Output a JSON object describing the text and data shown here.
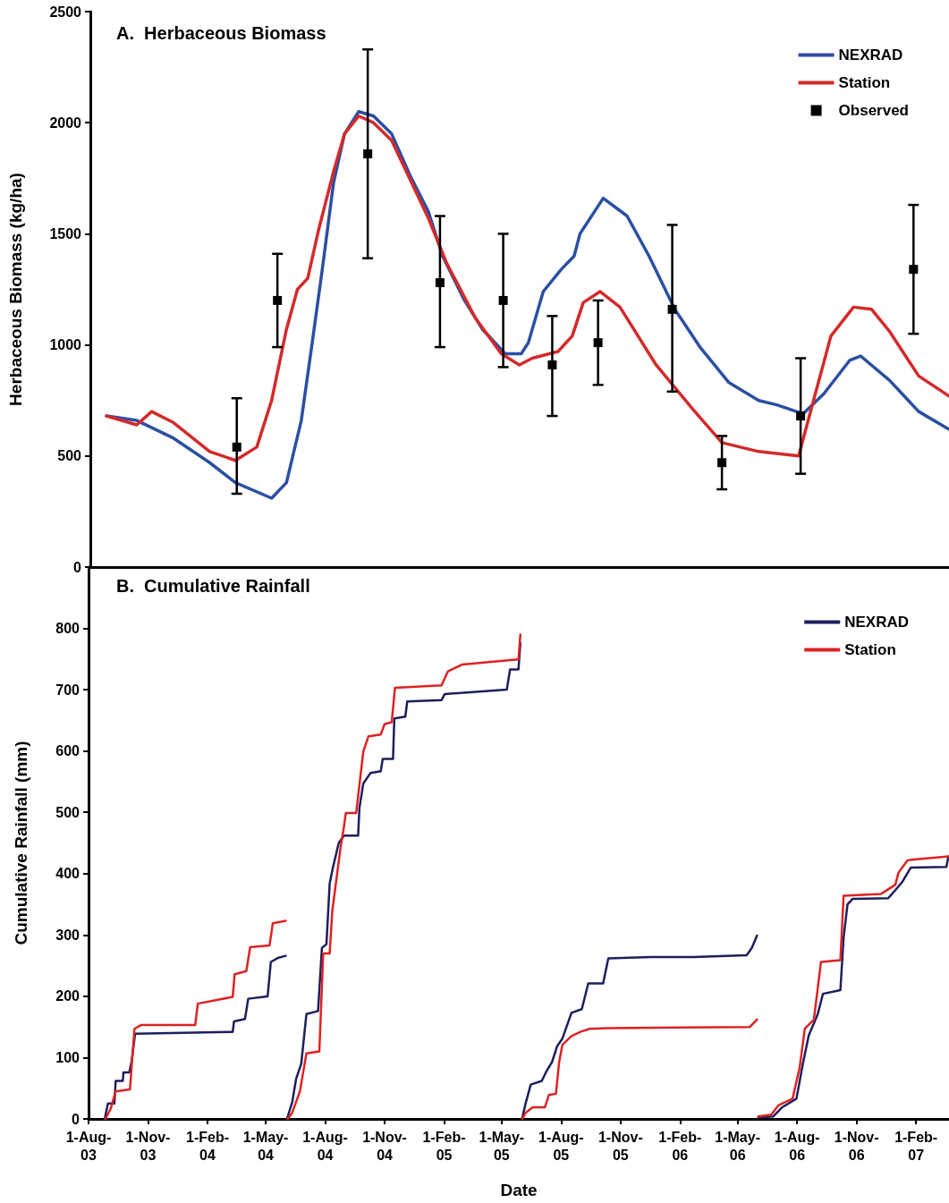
{
  "chart_data": [
    {
      "type": "line",
      "title": "A.  Herbaceous Biomass",
      "ylabel": "Herbaceous Biomass (kg/ha)",
      "xlim": [
        "2003-08-01",
        "2007-03-24"
      ],
      "ylim": [
        0,
        2500
      ],
      "yticks": [
        0,
        500,
        1000,
        1500,
        2000,
        2500
      ],
      "tick_labels": "y",
      "legend": "top right",
      "series": [
        {
          "name": "NEXRAD",
          "color": "#2b4fa3",
          "x": [
            "2003-08-26",
            "2003-10-12",
            "2003-12-08",
            "2004-02-02",
            "2004-03-13",
            "2004-05-08",
            "2004-05-31",
            "2004-06-23",
            "2004-07-09",
            "2004-07-26",
            "2004-08-12",
            "2004-08-29",
            "2004-09-20",
            "2004-10-13",
            "2004-11-10",
            "2004-12-09",
            "2005-01-06",
            "2005-01-28",
            "2005-03-03",
            "2005-03-31",
            "2005-05-05",
            "2005-05-30",
            "2005-06-10",
            "2005-07-03",
            "2005-07-31",
            "2005-08-20",
            "2005-08-29",
            "2005-10-04",
            "2005-11-10",
            "2005-12-14",
            "2006-01-23",
            "2006-03-03",
            "2006-04-17",
            "2006-06-02",
            "2006-06-30",
            "2006-08-10",
            "2006-09-11",
            "2006-10-21",
            "2006-11-07",
            "2006-12-22",
            "2007-02-05",
            "2007-03-24"
          ],
          "values": [
            680,
            660,
            580,
            470,
            380,
            310,
            380,
            660,
            990,
            1350,
            1730,
            1950,
            2050,
            2030,
            1950,
            1760,
            1600,
            1400,
            1200,
            1070,
            960,
            960,
            1010,
            1240,
            1340,
            1400,
            1500,
            1660,
            1580,
            1400,
            1160,
            990,
            830,
            750,
            730,
            690,
            780,
            930,
            950,
            840,
            700,
            620
          ]
        },
        {
          "name": "Station",
          "color": "#d42a2a",
          "x": [
            "2003-08-26",
            "2003-10-12",
            "2003-11-04",
            "2003-12-08",
            "2004-02-02",
            "2004-03-13",
            "2004-04-15",
            "2004-05-08",
            "2004-05-31",
            "2004-06-17",
            "2004-07-03",
            "2004-07-20",
            "2004-08-12",
            "2004-08-29",
            "2004-09-20",
            "2004-10-13",
            "2004-11-10",
            "2005-01-06",
            "2005-02-03",
            "2005-03-20",
            "2005-04-29",
            "2005-05-27",
            "2005-06-16",
            "2005-07-26",
            "2005-08-17",
            "2005-09-03",
            "2005-09-29",
            "2005-10-30",
            "2005-12-25",
            "2006-02-20",
            "2006-04-06",
            "2006-06-02",
            "2006-08-03",
            "2006-08-26",
            "2006-09-22",
            "2006-10-27",
            "2006-11-24",
            "2006-12-22",
            "2007-02-05",
            "2007-03-24"
          ],
          "values": [
            680,
            640,
            700,
            650,
            520,
            480,
            540,
            750,
            1070,
            1250,
            1300,
            1520,
            1780,
            1950,
            2030,
            2000,
            1920,
            1570,
            1370,
            1120,
            960,
            910,
            940,
            970,
            1040,
            1190,
            1240,
            1170,
            910,
            710,
            560,
            520,
            500,
            750,
            1040,
            1170,
            1160,
            1060,
            860,
            770
          ]
        },
        {
          "name": "Observed",
          "type": "scatter",
          "marker": "square",
          "color": "#000000",
          "x": [
            "2004-03-15",
            "2004-05-17",
            "2004-10-04",
            "2005-01-24",
            "2005-05-02",
            "2005-07-17",
            "2005-09-26",
            "2006-01-19",
            "2006-04-06",
            "2006-08-06",
            "2007-01-28"
          ],
          "values": [
            540,
            1200,
            1860,
            1280,
            1200,
            910,
            1010,
            1160,
            470,
            680,
            1340
          ],
          "errors": [
            [
              330,
              760
            ],
            [
              990,
              1410
            ],
            [
              1390,
              2330
            ],
            [
              990,
              1580
            ],
            [
              900,
              1500
            ],
            [
              680,
              1130
            ],
            [
              820,
              1200
            ],
            [
              790,
              1540
            ],
            [
              350,
              590
            ],
            [
              420,
              940
            ],
            [
              1050,
              1630
            ]
          ]
        }
      ]
    },
    {
      "type": "line",
      "title": "B.  Cumulative Rainfall",
      "xlabel": "Date",
      "ylabel": "Cumulative Rainfall (mm)",
      "xlim": [
        "2003-08-01",
        "2007-03-24"
      ],
      "xticks": [
        {
          "value": "2003-08-01",
          "label": "1-Aug-03"
        },
        {
          "value": "2003-11-01",
          "label": "1-Nov-03"
        },
        {
          "value": "2004-02-01",
          "label": "1-Feb-04"
        },
        {
          "value": "2004-05-01",
          "label": "1-May-04"
        },
        {
          "value": "2004-08-01",
          "label": "1-Aug-04"
        },
        {
          "value": "2004-11-01",
          "label": "1-Nov-04"
        },
        {
          "value": "2005-02-01",
          "label": "1-Feb-05"
        },
        {
          "value": "2005-05-01",
          "label": "1-May-05"
        },
        {
          "value": "2005-08-01",
          "label": "1-Aug-05"
        },
        {
          "value": "2005-11-01",
          "label": "1-Nov-05"
        },
        {
          "value": "2006-02-01",
          "label": "1-Feb-06"
        },
        {
          "value": "2006-05-01",
          "label": "1-May-06"
        },
        {
          "value": "2006-08-01",
          "label": "1-Aug-06"
        },
        {
          "value": "2006-11-01",
          "label": "1-Nov-06"
        },
        {
          "value": "2007-02-01",
          "label": "1-Feb-07"
        }
      ],
      "ylim": [
        0,
        900
      ],
      "yticks": [
        0,
        100,
        200,
        300,
        400,
        500,
        600,
        700,
        800
      ],
      "legend": "top right",
      "series": [
        {
          "name": "NEXRAD",
          "color": "#1e1e5e",
          "x": [
            "2003-08-26",
            "2003-08-31",
            "2003-09-10",
            "2003-09-12",
            "2003-09-23",
            "2003-09-24",
            "2003-10-03",
            "2003-10-07",
            "2003-10-12",
            "2004-03-11",
            "2004-03-13",
            "2004-03-30",
            "2004-04-04",
            "2004-05-04",
            "2004-05-09",
            "2004-05-21",
            "2004-06-01",
            "2004-06-02",
            "2004-06-03",
            "2004-06-11",
            "2004-06-17",
            "2004-06-25",
            "2004-07-03",
            "2004-07-21",
            "2004-07-27",
            "2004-08-03",
            "2004-08-08",
            "2004-08-13",
            "2004-08-22",
            "2004-08-30",
            "2004-09-21",
            "2004-09-23",
            "2004-09-29",
            "2004-10-10",
            "2004-10-26",
            "2004-10-29",
            "2004-11-14",
            "2004-11-16",
            "2004-12-03",
            "2004-12-06",
            "2005-01-28",
            "2005-02-02",
            "2005-05-09",
            "2005-05-14",
            "2005-05-27",
            "2005-05-30",
            "2005-05-31",
            "2005-06-02",
            "2005-06-07",
            "2005-06-15",
            "2005-07-02",
            "2005-07-10",
            "2005-07-18",
            "2005-07-26",
            "2005-08-03",
            "2005-08-17",
            "2005-09-02",
            "2005-09-12",
            "2005-10-05",
            "2005-10-13",
            "2005-12-18",
            "2006-02-22",
            "2006-05-15",
            "2006-05-23",
            "2006-05-31",
            "2006-06-01",
            "2006-06-02",
            "2006-06-25",
            "2006-07-09",
            "2006-07-31",
            "2006-08-10",
            "2006-08-19",
            "2006-09-02",
            "2006-09-10",
            "2006-10-07",
            "2006-10-12",
            "2006-10-18",
            "2006-10-26",
            "2006-12-20",
            "2006-12-31",
            "2007-01-11",
            "2007-01-24",
            "2007-03-20",
            "2007-03-23"
          ],
          "values": [
            0,
            25,
            25,
            62,
            62,
            76,
            76,
            96,
            139,
            142,
            159,
            163,
            196,
            200,
            256,
            263,
            266,
            null,
            0,
            27,
            65,
            90,
            171,
            176,
            279,
            285,
            384,
            410,
            450,
            462,
            462,
            507,
            547,
            564,
            567,
            587,
            587,
            653,
            656,
            681,
            683,
            693,
            700,
            733,
            733,
            776,
            null,
            2,
            25,
            56,
            62,
            79,
            93,
            119,
            131,
            173,
            179,
            221,
            221,
            262,
            264,
            264,
            267,
            279,
            299,
            null,
            2,
            4,
            19,
            33,
            90,
            136,
            171,
            204,
            210,
            296,
            350,
            359,
            360,
            373,
            387,
            410,
            411,
            428
          ]
        },
        {
          "name": "Station",
          "color": "#dd2222",
          "x": [
            "2003-08-27",
            "2003-09-04",
            "2003-09-12",
            "2003-10-04",
            "2003-10-11",
            "2003-10-21",
            "2004-01-13",
            "2004-01-17",
            "2004-03-11",
            "2004-03-14",
            "2004-04-01",
            "2004-04-07",
            "2004-05-07",
            "2004-05-12",
            "2004-06-01",
            "2004-06-02",
            "2004-06-04",
            "2004-06-11",
            "2004-06-23",
            "2004-07-03",
            "2004-07-23",
            "2004-07-29",
            "2004-08-08",
            "2004-08-12",
            "2004-08-25",
            "2004-08-30",
            "2004-09-02",
            "2004-09-18",
            "2004-09-29",
            "2004-10-07",
            "2004-10-26",
            "2004-11-01",
            "2004-11-12",
            "2004-11-17",
            "2005-01-28",
            "2005-02-07",
            "2005-03-01",
            "2005-05-22",
            "2005-05-27",
            "2005-05-30",
            "2005-05-31",
            "2005-06-02",
            "2005-06-07",
            "2005-06-18",
            "2005-07-07",
            "2005-07-13",
            "2005-07-24",
            "2005-07-29",
            "2005-08-03",
            "2005-08-17",
            "2005-08-31",
            "2005-09-14",
            "2005-10-13",
            "2006-05-20",
            "2006-05-31",
            "2006-06-01",
            "2006-06-02",
            "2006-06-22",
            "2006-07-03",
            "2006-07-25",
            "2006-08-05",
            "2006-08-13",
            "2006-08-27",
            "2006-09-07",
            "2006-10-07",
            "2006-10-12",
            "2006-12-09",
            "2006-12-31",
            "2007-01-05",
            "2007-01-19",
            "2007-03-23"
          ],
          "values": [
            0,
            16,
            45,
            48,
            147,
            153,
            153,
            188,
            199,
            236,
            241,
            280,
            283,
            319,
            323,
            null,
            0,
            10,
            45,
            107,
            110,
            270,
            270,
            339,
            444,
            476,
            499,
            499,
            599,
            624,
            627,
            644,
            647,
            703,
            707,
            730,
            741,
            749,
            749,
            790,
            null,
            0,
            10,
            19,
            19,
            39,
            41,
            93,
            121,
            135,
            142,
            147,
            148,
            150,
            162,
            null,
            4,
            7,
            22,
            33,
            84,
            147,
            162,
            256,
            259,
            364,
            367,
            382,
            402,
            422,
            428
          ]
        }
      ]
    }
  ]
}
